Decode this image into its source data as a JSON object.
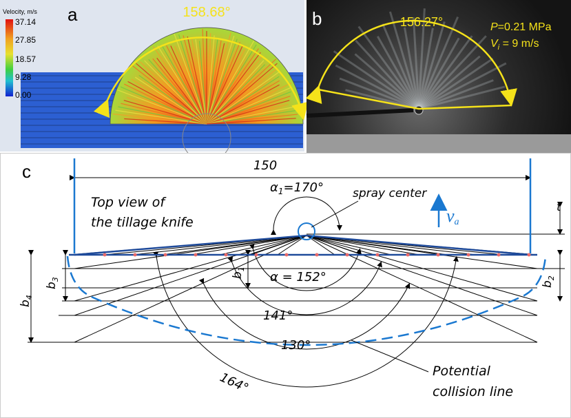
{
  "panel_a": {
    "label": "a",
    "legend_title": "Velocity, m/s",
    "legend_values": [
      "37.14",
      "27.85",
      "18.57",
      "9.28",
      "0.00"
    ],
    "angle": "158.68°"
  },
  "panel_b": {
    "label": "b",
    "angle": "156.27°",
    "pressure": {
      "symbol": "P",
      "value": "=0.21 MPa"
    },
    "velocity": {
      "symbol": "V",
      "subscript": "i",
      "value": " = 9 m/s"
    }
  },
  "panel_c": {
    "label": "c",
    "width": "150",
    "alpha1": {
      "symbol": "α",
      "subscript": "1",
      "value": "=170°"
    },
    "spray_center": "spray center",
    "velocity": {
      "symbol": "v",
      "subscript": "a"
    },
    "title_lines": [
      "Top view of",
      "the tillage knife"
    ],
    "t": "t",
    "dims": [
      {
        "symbol": "b",
        "subscript": "1"
      },
      {
        "symbol": "b",
        "subscript": "2"
      },
      {
        "symbol": "b",
        "subscript": "3"
      },
      {
        "symbol": "b",
        "subscript": "4"
      }
    ],
    "alpha": "α = 152°",
    "angles": [
      "141°",
      "130°",
      "164°"
    ],
    "collision_lines": [
      "Potential",
      "collision line"
    ]
  }
}
